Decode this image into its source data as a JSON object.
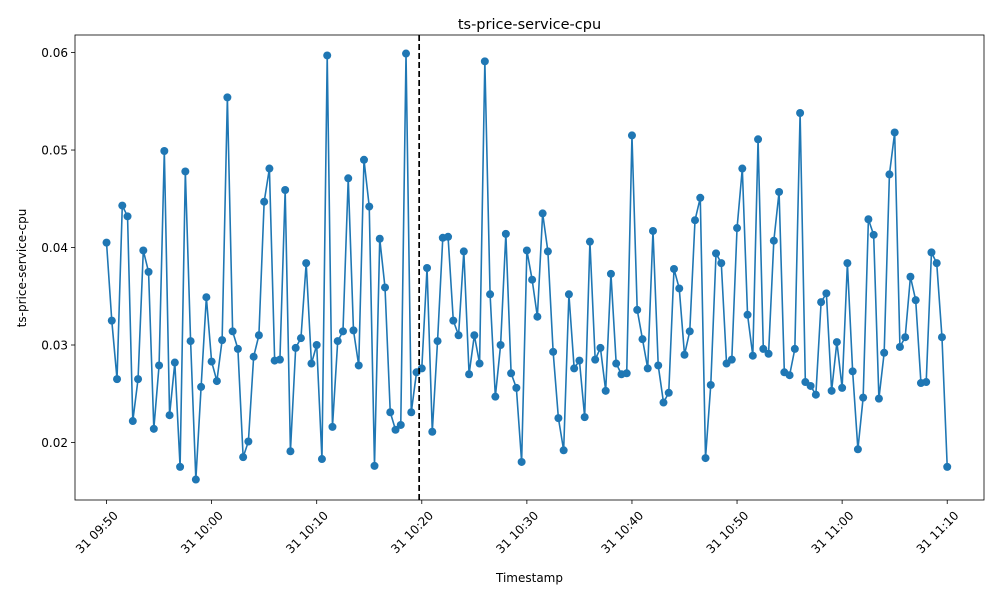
{
  "chart_data": {
    "type": "line",
    "title": "ts-price-service-cpu",
    "xlabel": "Timestamp",
    "ylabel": "ts-price-service-cpu",
    "x_start": "31 09:50",
    "x_step_seconds": 30,
    "xlim": [
      "31 09:47:00",
      "31 11:13:30"
    ],
    "ylim": [
      0.0141,
      0.0618
    ],
    "x_ticks": [
      "31 09:50",
      "31 10:00",
      "31 10:10",
      "31 10:20",
      "31 10:30",
      "31 10:40",
      "31 10:50",
      "31 11:00",
      "31 11:10"
    ],
    "y_ticks": [
      "0.02",
      "0.03",
      "0.04",
      "0.05",
      "0.06"
    ],
    "grid": false,
    "line_color": "#1f77b4",
    "marker": "circle",
    "vertical_line": {
      "x": "31 10:19:45",
      "style": "dashed",
      "color": "#000000"
    },
    "series": [
      {
        "values": [
          0.0405,
          0.0325,
          0.0265,
          0.0443,
          0.0432,
          0.0222,
          0.0265,
          0.0397,
          0.0375,
          0.0214,
          0.0279,
          0.0499,
          0.0228,
          0.0282,
          0.0175,
          0.0478,
          0.0304,
          0.0162,
          0.0257,
          0.0349,
          0.0283,
          0.0263,
          0.0305,
          0.0554,
          0.0314,
          0.0296,
          0.0185,
          0.0201,
          0.0288,
          0.031,
          0.0447,
          0.0481,
          0.0284,
          0.0285,
          0.0459,
          0.0191,
          0.0297,
          0.0307,
          0.0384,
          0.0281,
          0.03,
          0.0183,
          0.0597,
          0.0216,
          0.0304,
          0.0314,
          0.0471,
          0.0315,
          0.0279,
          0.049,
          0.0442,
          0.0176,
          0.0409,
          0.0359,
          0.0231,
          0.0213,
          0.0218,
          0.0599,
          0.0231,
          0.0272,
          0.0276,
          0.0379,
          0.0211,
          0.0304,
          0.041,
          0.0411,
          0.0325,
          0.031,
          0.0396,
          0.027,
          0.031,
          0.0281,
          0.0591,
          0.0352,
          0.0247,
          0.03,
          0.0414,
          0.0271,
          0.0256,
          0.018,
          0.0397,
          0.0367,
          0.0329,
          0.0435,
          0.0396,
          0.0293,
          0.0225,
          0.0192,
          0.0352,
          0.0276,
          0.0284,
          0.0226,
          0.0406,
          0.0285,
          0.0297,
          0.0253,
          0.0373,
          0.0281,
          0.027,
          0.0271,
          0.0515,
          0.0336,
          0.0306,
          0.0276,
          0.0417,
          0.0279,
          0.0241,
          0.0251,
          0.0378,
          0.0358,
          0.029,
          0.0314,
          0.0428,
          0.0451,
          0.0184,
          0.0259,
          0.0394,
          0.0384,
          0.0281,
          0.0285,
          0.042,
          0.0481,
          0.0331,
          0.0289,
          0.0511,
          0.0296,
          0.0291,
          0.0407,
          0.0457,
          0.0272,
          0.0269,
          0.0296,
          0.0538,
          0.0262,
          0.0258,
          0.0249,
          0.0344,
          0.0353,
          0.0253,
          0.0303,
          0.0256,
          0.0384,
          0.0273,
          0.0193,
          0.0246,
          0.0429,
          0.0413,
          0.0245,
          0.0292,
          0.0475,
          0.0518,
          0.0298,
          0.0308,
          0.037,
          0.0346,
          0.0261,
          0.0262,
          0.0395,
          0.0384,
          0.0308,
          0.0175
        ]
      }
    ]
  }
}
